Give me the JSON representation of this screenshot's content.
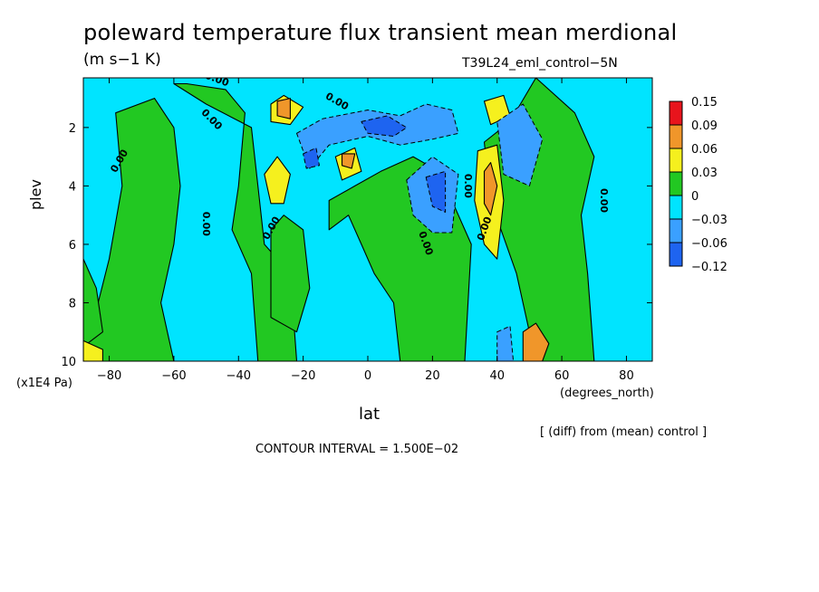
{
  "chart_data": {
    "type": "heatmap",
    "title": "poleward temperature flux transient mean merdional",
    "units": "(m s−1 K)",
    "run_id": "T39L24_eml_control−5N",
    "xlabel": "lat",
    "ylabel": "plev",
    "x_units_label": "(degrees_north)",
    "y_units_label": "(x1E4 Pa)",
    "note": "[ (diff) from (mean) control ]",
    "contour_interval_text": "CONTOUR INTERVAL = 1.500E−02",
    "xlim": [
      -88,
      88
    ],
    "ylim": [
      10,
      0.3
    ],
    "x_ticks": [
      -80,
      -60,
      -40,
      -20,
      0,
      20,
      40,
      60,
      80
    ],
    "y_ticks": [
      2,
      4,
      6,
      8,
      10
    ],
    "x_tick_labels": [
      "−80",
      "−60",
      "−40",
      "−20",
      "0",
      "20",
      "40",
      "60",
      "80"
    ],
    "y_tick_labels": [
      "2",
      "4",
      "6",
      "8",
      "10"
    ],
    "colorbar": {
      "labels": [
        "0.15",
        "0.09",
        "0.06",
        "0.03",
        "0",
        "−0.03",
        "−0.06",
        "−0.12"
      ],
      "colors": [
        "#e8141c",
        "#f0962a",
        "#f5f01e",
        "#22c822",
        "#00e4ff",
        "#3aa0ff",
        "#1e64f0"
      ]
    },
    "background_color": "#00e4ff",
    "features": [
      {
        "kind": "band",
        "sign": "positive",
        "level": 0.015,
        "points": [
          [
            -88,
            10
          ],
          [
            -80,
            6.5
          ],
          [
            -76,
            4
          ],
          [
            -78,
            1.5
          ],
          [
            -66,
            1
          ],
          [
            -60,
            2
          ],
          [
            -58,
            4
          ],
          [
            -60,
            6
          ],
          [
            -64,
            8
          ],
          [
            -60,
            10
          ]
        ]
      },
      {
        "kind": "band",
        "sign": "positive",
        "level": 0.015,
        "points": [
          [
            -56,
            0.5
          ],
          [
            -44,
            0.7
          ],
          [
            -38,
            1.5
          ],
          [
            -40,
            4
          ],
          [
            -42,
            5.5
          ],
          [
            -36,
            7
          ],
          [
            -34,
            10
          ],
          [
            -22,
            10
          ],
          [
            -24,
            7
          ],
          [
            -32,
            6
          ],
          [
            -34,
            4
          ],
          [
            -36,
            2
          ],
          [
            -50,
            1.2
          ],
          [
            -60,
            0.5
          ]
        ]
      },
      {
        "kind": "band",
        "sign": "positive",
        "level": 0.015,
        "points": [
          [
            -12,
            4.5
          ],
          [
            -4,
            4
          ],
          [
            4,
            3.5
          ],
          [
            14,
            3
          ],
          [
            22,
            3.5
          ],
          [
            26,
            4.5
          ],
          [
            32,
            6
          ],
          [
            30,
            10
          ],
          [
            10,
            10
          ],
          [
            8,
            8
          ],
          [
            2,
            7
          ],
          [
            -2,
            6
          ],
          [
            -6,
            5
          ],
          [
            -12,
            5.5
          ]
        ]
      },
      {
        "kind": "band",
        "sign": "positive",
        "level": 0.015,
        "points": [
          [
            52,
            0.3
          ],
          [
            64,
            1.5
          ],
          [
            70,
            3
          ],
          [
            66,
            5
          ],
          [
            68,
            7
          ],
          [
            70,
            10
          ],
          [
            52,
            10
          ],
          [
            46,
            7
          ],
          [
            38,
            4.5
          ],
          [
            36,
            2.5
          ],
          [
            44,
            1.8
          ]
        ]
      },
      {
        "kind": "band",
        "sign": "positive",
        "level": 0.015,
        "points": [
          [
            -30,
            5.5
          ],
          [
            -26,
            5
          ],
          [
            -20,
            5.5
          ],
          [
            -18,
            7.5
          ],
          [
            -22,
            9
          ],
          [
            -30,
            8.5
          ]
        ]
      },
      {
        "kind": "band",
        "sign": "positive",
        "level": 0.015,
        "points": [
          [
            -88,
            6.5
          ],
          [
            -84,
            7.5
          ],
          [
            -82,
            9
          ],
          [
            -88,
            9.5
          ]
        ]
      },
      {
        "kind": "core",
        "sign": "positive",
        "level": 0.03,
        "points": [
          [
            -32,
            3.6
          ],
          [
            -28,
            3
          ],
          [
            -24,
            3.6
          ],
          [
            -26,
            4.6
          ],
          [
            -30,
            4.6
          ]
        ]
      },
      {
        "kind": "core",
        "sign": "positive",
        "level": 0.03,
        "points": [
          [
            -10,
            3
          ],
          [
            -4,
            2.7
          ],
          [
            -2,
            3.5
          ],
          [
            -8,
            3.8
          ]
        ]
      },
      {
        "kind": "core",
        "sign": "positive",
        "level": 0.03,
        "points": [
          [
            34,
            2.8
          ],
          [
            40,
            2.6
          ],
          [
            42,
            4.5
          ],
          [
            40,
            6.5
          ],
          [
            36,
            6
          ],
          [
            33,
            4.5
          ]
        ]
      },
      {
        "kind": "core",
        "sign": "positive",
        "level": 0.03,
        "points": [
          [
            -30,
            1.2
          ],
          [
            -26,
            0.9
          ],
          [
            -20,
            1.3
          ],
          [
            -24,
            1.9
          ],
          [
            -30,
            1.8
          ]
        ]
      },
      {
        "kind": "core",
        "sign": "positive",
        "level": 0.03,
        "points": [
          [
            36,
            1.1
          ],
          [
            42,
            0.9
          ],
          [
            44,
            1.6
          ],
          [
            38,
            1.9
          ]
        ]
      },
      {
        "kind": "core",
        "sign": "positive",
        "level": 0.06,
        "points": [
          [
            36,
            3.5
          ],
          [
            38,
            3.2
          ],
          [
            40,
            4
          ],
          [
            38,
            5
          ],
          [
            36,
            4.6
          ]
        ]
      },
      {
        "kind": "core",
        "sign": "positive",
        "level": 0.06,
        "points": [
          [
            -28,
            1.1
          ],
          [
            -24,
            1
          ],
          [
            -24,
            1.7
          ],
          [
            -28,
            1.6
          ]
        ]
      },
      {
        "kind": "core",
        "sign": "positive",
        "level": 0.06,
        "points": [
          [
            -8,
            2.9
          ],
          [
            -4,
            2.9
          ],
          [
            -5,
            3.4
          ],
          [
            -8,
            3.3
          ]
        ]
      },
      {
        "kind": "core",
        "sign": "positive",
        "level": 0.06,
        "points": [
          [
            48,
            9
          ],
          [
            52,
            8.7
          ],
          [
            56,
            9.4
          ],
          [
            54,
            10
          ],
          [
            48,
            10
          ]
        ]
      },
      {
        "kind": "core",
        "sign": "positive",
        "level": 0.03,
        "points": [
          [
            -88,
            9.3
          ],
          [
            -82,
            9.6
          ],
          [
            -82,
            10
          ],
          [
            -88,
            10
          ]
        ]
      },
      {
        "kind": "core",
        "sign": "negative",
        "level": -0.03,
        "points": [
          [
            -22,
            2.2
          ],
          [
            -14,
            1.7
          ],
          [
            0,
            1.4
          ],
          [
            10,
            1.6
          ],
          [
            18,
            1.2
          ],
          [
            26,
            1.4
          ],
          [
            28,
            2.2
          ],
          [
            20,
            2.4
          ],
          [
            10,
            2.6
          ],
          [
            0,
            2.3
          ],
          [
            -12,
            2.6
          ],
          [
            -18,
            3.4
          ]
        ]
      },
      {
        "kind": "core",
        "sign": "negative",
        "level": -0.03,
        "points": [
          [
            12,
            3.8
          ],
          [
            20,
            3
          ],
          [
            28,
            3.6
          ],
          [
            26,
            5.6
          ],
          [
            20,
            5.6
          ],
          [
            14,
            5
          ]
        ]
      },
      {
        "kind": "core",
        "sign": "negative",
        "level": -0.03,
        "points": [
          [
            40,
            1.8
          ],
          [
            48,
            1.2
          ],
          [
            54,
            2.4
          ],
          [
            50,
            4
          ],
          [
            42,
            3.6
          ]
        ]
      },
      {
        "kind": "core",
        "sign": "negative",
        "level": -0.06,
        "points": [
          [
            -2,
            1.8
          ],
          [
            6,
            1.6
          ],
          [
            12,
            2
          ],
          [
            8,
            2.3
          ],
          [
            0,
            2.2
          ]
        ]
      },
      {
        "kind": "core",
        "sign": "negative",
        "level": -0.06,
        "points": [
          [
            18,
            3.7
          ],
          [
            24,
            3.5
          ],
          [
            24,
            4.9
          ],
          [
            20,
            4.7
          ]
        ]
      },
      {
        "kind": "core",
        "sign": "negative",
        "level": -0.06,
        "points": [
          [
            -20,
            2.9
          ],
          [
            -16,
            2.7
          ],
          [
            -15,
            3.3
          ],
          [
            -19,
            3.4
          ]
        ]
      },
      {
        "kind": "core",
        "sign": "negative",
        "level": -0.03,
        "points": [
          [
            40,
            9
          ],
          [
            44,
            8.8
          ],
          [
            45,
            10
          ],
          [
            40,
            10
          ]
        ]
      }
    ],
    "contour_labels": [
      {
        "text": "0.00",
        "x": -76,
        "y": 3.2,
        "rotate": -60
      },
      {
        "text": "0.00",
        "x": -51,
        "y": 5.3,
        "rotate": 90
      },
      {
        "text": "0.00",
        "x": -29,
        "y": 5.5,
        "rotate": -60
      },
      {
        "text": "0.00",
        "x": -49,
        "y": 1.8,
        "rotate": 45
      },
      {
        "text": "0.00",
        "x": -47,
        "y": 0.45,
        "rotate": 20
      },
      {
        "text": "0.00",
        "x": -10,
        "y": 1.2,
        "rotate": 30
      },
      {
        "text": "0.00",
        "x": 17,
        "y": 6,
        "rotate": 70
      },
      {
        "text": "0.00",
        "x": 30,
        "y": 4,
        "rotate": 90
      },
      {
        "text": "0.00",
        "x": 37,
        "y": 5.5,
        "rotate": -70
      },
      {
        "text": "0.00",
        "x": 72,
        "y": 4.5,
        "rotate": 90
      }
    ]
  }
}
